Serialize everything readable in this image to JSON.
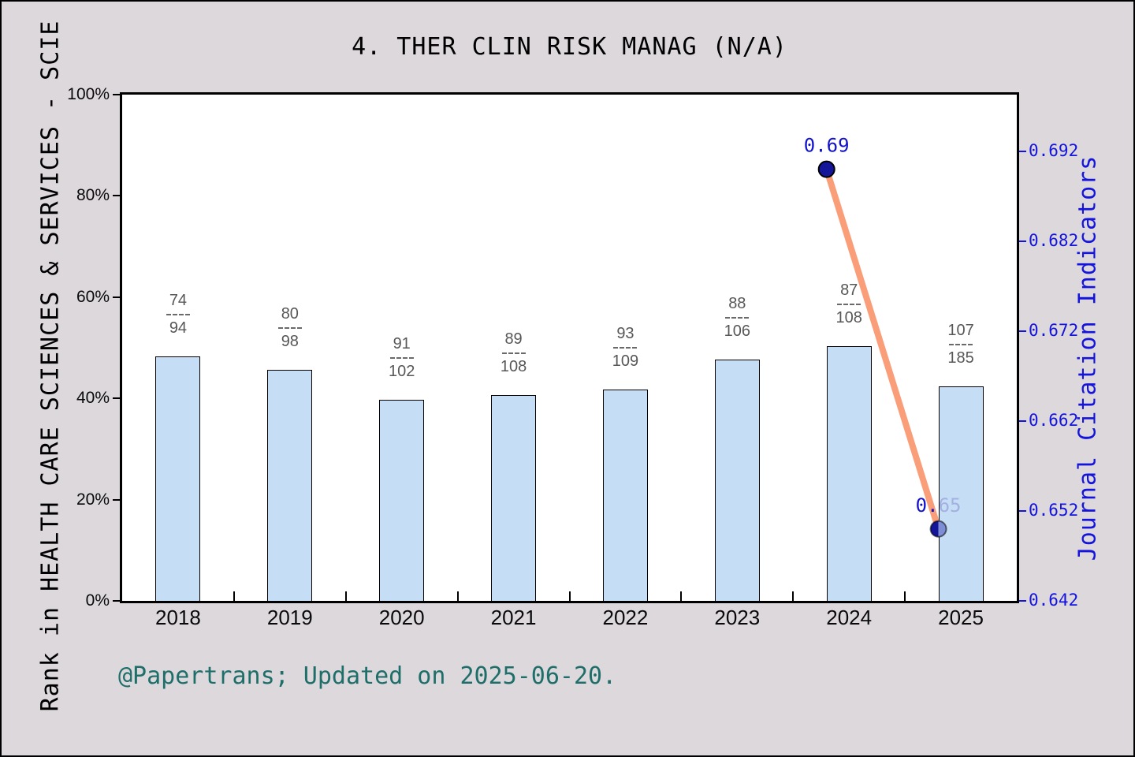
{
  "title": "4. THER CLIN RISK MANAG (N/A)",
  "annotation": "@Papertrans; Updated on 2025-06-20.",
  "colors": {
    "background": "#dcd8dc",
    "plot_background": "#ffffff",
    "bar_fill": "#c6def5",
    "bar_edge": "#000000",
    "fraction_text": "#575757",
    "line": "#f99e78",
    "marker": "#151599",
    "marker_faded": "#7e8ed4",
    "jci_text": "#1212cc",
    "jci_text_faded": "#a3b0e2",
    "right_axis_blue": "#1414dd",
    "annotation_teal": "#1e6e69"
  },
  "chart_data": {
    "type": "bar",
    "categories": [
      "2018",
      "2019",
      "2020",
      "2021",
      "2022",
      "2023",
      "2024",
      "2025"
    ],
    "series": [
      {
        "name": "rank-percentile-bars",
        "type": "bar",
        "height_pct": [
          48.3,
          45.6,
          39.7,
          40.6,
          41.7,
          47.7,
          50.3,
          42.4
        ],
        "fraction_labels": [
          {
            "numerator": "74",
            "denominator": "94"
          },
          {
            "numerator": "80",
            "denominator": "98"
          },
          {
            "numerator": "91",
            "denominator": "102"
          },
          {
            "numerator": "89",
            "denominator": "108"
          },
          {
            "numerator": "93",
            "denominator": "109"
          },
          {
            "numerator": "88",
            "denominator": "106"
          },
          {
            "numerator": "87",
            "denominator": "108"
          },
          {
            "numerator": "107",
            "denominator": "185"
          }
        ]
      },
      {
        "name": "journal-citation-indicators-line",
        "type": "line",
        "points": [
          {
            "year": "2024",
            "value": 0.69,
            "label": "0.69",
            "faded": false
          },
          {
            "year": "2025",
            "value": 0.65,
            "label": "0.65",
            "faded": true
          }
        ]
      }
    ],
    "left_axis": {
      "title": "Rank in HEALTH CARE SCIENCES & SERVICES - SCIE",
      "min": 0,
      "max": 100,
      "ticks": [
        {
          "value": 0,
          "label": "0%"
        },
        {
          "value": 20,
          "label": "20%"
        },
        {
          "value": 40,
          "label": "40%"
        },
        {
          "value": 60,
          "label": "60%"
        },
        {
          "value": 80,
          "label": "80%"
        },
        {
          "value": 100,
          "label": "100%"
        }
      ]
    },
    "right_axis": {
      "title": "Journal Citation Indicators",
      "min": 0.642,
      "max": 0.6983,
      "ticks": [
        {
          "value": 0.642,
          "label": "0.642"
        },
        {
          "value": 0.652,
          "label": "0.652"
        },
        {
          "value": 0.662,
          "label": "0.662"
        },
        {
          "value": 0.672,
          "label": "0.672"
        },
        {
          "value": 0.682,
          "label": "0.682"
        },
        {
          "value": 0.692,
          "label": "0.692"
        }
      ]
    },
    "grid": false,
    "legend": false
  }
}
